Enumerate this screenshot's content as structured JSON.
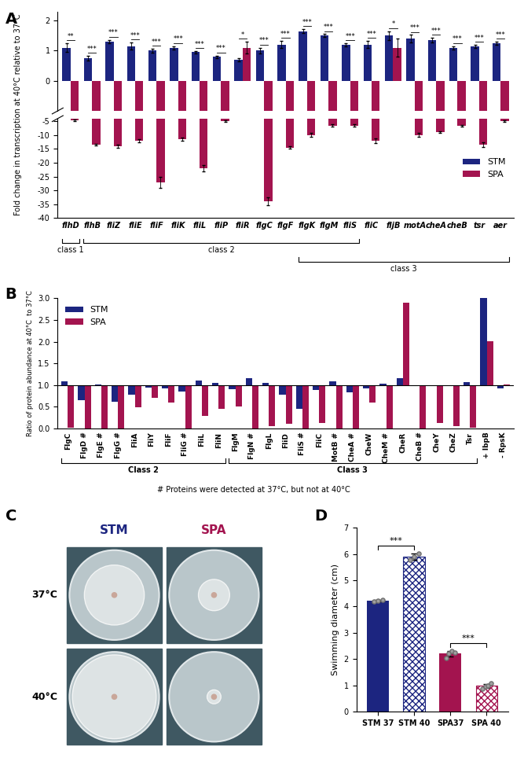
{
  "chart_data": [
    {
      "panel": "A",
      "type": "bar",
      "y_label": "Fold change in transcription at 40°C relative to 37°C",
      "categories": [
        "flhD",
        "flhB",
        "fliZ",
        "fliE",
        "fliF",
        "fliK",
        "fliL",
        "fliP",
        "fliR",
        "flgC",
        "flgF",
        "flgK",
        "flgM",
        "fliS",
        "fliC",
        "fljB",
        "motA",
        "cheA",
        "cheB",
        "tsr",
        "aer"
      ],
      "series": [
        {
          "name": "STM",
          "color": "#1c2580",
          "values": [
            1.1,
            0.75,
            1.3,
            1.15,
            1.0,
            1.1,
            0.95,
            0.8,
            0.7,
            1.0,
            1.2,
            1.65,
            1.5,
            1.2,
            1.2,
            1.5,
            1.4,
            1.35,
            1.1,
            1.15,
            1.25
          ],
          "errors": [
            0.15,
            0.08,
            0.06,
            0.12,
            0.06,
            0.05,
            0.04,
            0.04,
            0.05,
            0.1,
            0.12,
            0.06,
            0.05,
            0.05,
            0.12,
            0.15,
            0.12,
            0.08,
            0.05,
            0.05,
            0.05
          ]
        },
        {
          "name": "SPA",
          "color": "#a3144f",
          "values": [
            -4.5,
            -13.5,
            -14,
            -12,
            -27,
            -11.5,
            -22,
            -5,
            1.1,
            -34,
            -14.5,
            -10,
            -6.5,
            -6.5,
            -12,
            1.1,
            -10,
            -9,
            -6.5,
            -13.5,
            -5
          ],
          "errors": [
            0.3,
            0.3,
            0.6,
            0.5,
            2.0,
            0.5,
            1.2,
            0.3,
            0.2,
            1.5,
            0.4,
            0.7,
            0.4,
            0.4,
            0.8,
            0.3,
            0.7,
            0.3,
            0.3,
            0.9,
            0.3
          ]
        }
      ],
      "ylim": [
        -40,
        2.3
      ],
      "axis_break": [
        -4,
        -1
      ],
      "yticks": [
        -40,
        -35,
        -30,
        -25,
        -20,
        -15,
        -10,
        -5,
        0,
        1,
        2
      ],
      "legend": "center right",
      "significance": [
        "**",
        "***",
        "***",
        "***",
        "***",
        "***",
        "***",
        "***",
        "*",
        "***",
        "***",
        "***",
        "***",
        "***",
        "***",
        "*",
        "***",
        "***",
        "***",
        "***",
        "***"
      ],
      "groups": [
        {
          "name": "class 1",
          "from": "flhD",
          "to": "flhD"
        },
        {
          "name": "class 2",
          "from": "flhB",
          "to": "fliS"
        },
        {
          "name": "class 3",
          "from": "flgK",
          "to": "aer"
        }
      ]
    },
    {
      "panel": "B",
      "type": "bar",
      "y_label": "Ratio of protein abundance at 40°C  to 37°C",
      "categories": [
        "FlgC",
        "FlgD #",
        "FlgE #",
        "FlgG #",
        "FliA",
        "FliY",
        "FliF",
        "FliG #",
        "FliL",
        "FliN",
        "FlgM",
        "FlgN #",
        "FlgL",
        "FliD",
        "FliS #",
        "FliC",
        "MotB #",
        "CheA #",
        "CheW",
        "CheM #",
        "CheR",
        "CheB #",
        "CheY",
        "CheZ",
        "Tsr",
        "+ IbpB",
        "- RpsK"
      ],
      "series": [
        {
          "name": "STM",
          "color": "#1c2580",
          "values": [
            1.08,
            0.65,
            1.02,
            0.62,
            0.78,
            0.95,
            0.93,
            0.85,
            1.1,
            1.05,
            0.9,
            1.15,
            1.05,
            0.78,
            0.45,
            0.88,
            1.08,
            0.83,
            0.93,
            1.03,
            1.15,
            1.0,
            1.0,
            0.98,
            1.07,
            3.0,
            0.93
          ]
        },
        {
          "name": "SPA",
          "color": "#a3144f",
          "values": [
            0.02,
            0.0,
            0.0,
            0.0,
            0.48,
            0.7,
            0.6,
            0.0,
            0.28,
            0.45,
            0.5,
            0.0,
            0.05,
            0.1,
            0.0,
            0.12,
            0.0,
            0.0,
            0.6,
            0.0,
            2.9,
            0.0,
            0.12,
            0.05,
            0.02,
            2.02,
            1.02
          ]
        }
      ],
      "baseline": 1,
      "ylim": [
        0,
        3.0
      ],
      "yticks": [
        {
          "value": 0,
          "label": "0.0"
        },
        {
          "value": 0.5,
          "label": "0.5"
        },
        {
          "value": 1,
          "label": "1.0"
        },
        {
          "value": 1.5,
          "label": "1.5"
        },
        {
          "value": 2,
          "label": "2.0"
        },
        {
          "value": 2.5,
          "label": "2.5"
        },
        {
          "value": 3,
          "label": "3.0"
        }
      ],
      "legend": "upper left",
      "groups": [
        {
          "name": "Class 2",
          "from": "FlgC",
          "to": "FliN"
        },
        {
          "name": "Class 3",
          "from": "FlgM",
          "to": "Tsr"
        }
      ],
      "note": "# Proteins were detected at 37°C, but not at 40°C"
    },
    {
      "panel": "D",
      "type": "bar",
      "y_label": "Swimming diameter (cm)",
      "categories": [
        "STM 37",
        "STM 40",
        "SPA37",
        "SPA 40"
      ],
      "values": [
        4.22,
        5.9,
        2.2,
        0.98
      ],
      "errors": [
        0.04,
        0.12,
        0.1,
        0.08
      ],
      "points": [
        [
          4.18,
          4.22,
          4.26
        ],
        [
          5.78,
          5.9,
          6.02
        ],
        [
          2.05,
          2.2,
          2.3,
          2.25
        ],
        [
          0.88,
          0.95,
          1.0,
          1.08
        ]
      ],
      "colors": [
        "#1c2580",
        "#1c2580",
        "#a3144f",
        "#a3144f"
      ],
      "ylim": [
        0,
        7
      ],
      "yticks": [
        0,
        1,
        2,
        3,
        4,
        5,
        6,
        7
      ],
      "significance": [
        {
          "from": "STM 37",
          "to": "STM 40",
          "label": "***"
        },
        {
          "from": "SPA37",
          "to": "SPA 40",
          "label": "***"
        }
      ]
    }
  ],
  "image_panel": {
    "panel": "C",
    "columns": [
      "STM",
      "SPA"
    ],
    "rows": [
      "37°C",
      "40°C"
    ]
  }
}
